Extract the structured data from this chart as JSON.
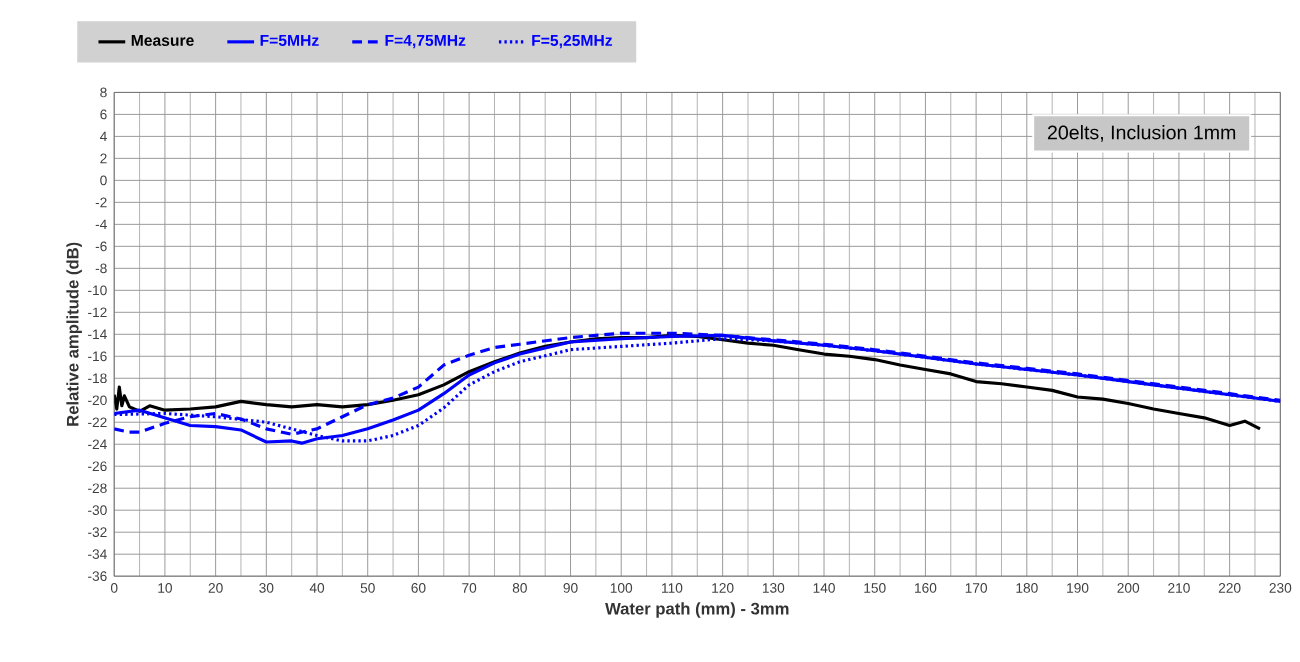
{
  "chart_data": {
    "type": "line",
    "xlabel": "Water path (mm) - 3mm",
    "ylabel": "Relative amplitude (dB)",
    "annotations": [
      "20elts, Inclusion 1mm"
    ],
    "xlim": [
      0,
      230
    ],
    "xticks": [
      0,
      10,
      20,
      30,
      40,
      50,
      60,
      70,
      80,
      90,
      100,
      110,
      120,
      130,
      140,
      150,
      160,
      170,
      180,
      190,
      200,
      210,
      220,
      230
    ],
    "ylim": [
      -36,
      8
    ],
    "yticks": [
      -36,
      -34,
      -32,
      -30,
      -28,
      -26,
      -24,
      -22,
      -20,
      -18,
      -16,
      -14,
      -12,
      -10,
      -8,
      -6,
      -4,
      -2,
      0,
      2,
      4,
      6,
      8
    ],
    "grid": true,
    "legend": "top",
    "marker": "none",
    "series": [
      {
        "name": "Measure",
        "color": "#000000",
        "line_style": "solid",
        "x": [
          0,
          0.5,
          1,
          1.5,
          2,
          3,
          5,
          7,
          10,
          15,
          20,
          25,
          30,
          35,
          40,
          45,
          50,
          55,
          60,
          65,
          70,
          75,
          80,
          85,
          90,
          95,
          100,
          105,
          110,
          115,
          120,
          125,
          130,
          135,
          140,
          145,
          150,
          155,
          160,
          165,
          170,
          175,
          180,
          185,
          190,
          195,
          200,
          205,
          210,
          215,
          220,
          223,
          226
        ],
        "values": [
          -19.5,
          -20.8,
          -18.8,
          -20.5,
          -19.6,
          -20.6,
          -21.0,
          -20.5,
          -20.9,
          -20.8,
          -20.6,
          -20.1,
          -20.4,
          -20.6,
          -20.4,
          -20.6,
          -20.4,
          -20.0,
          -19.5,
          -18.6,
          -17.4,
          -16.5,
          -15.7,
          -15.1,
          -14.7,
          -14.4,
          -14.3,
          -14.3,
          -14.1,
          -14.2,
          -14.5,
          -14.8,
          -15.0,
          -15.4,
          -15.8,
          -16.0,
          -16.3,
          -16.8,
          -17.2,
          -17.6,
          -18.3,
          -18.5,
          -18.8,
          -19.1,
          -19.7,
          -19.9,
          -20.3,
          -20.8,
          -21.2,
          -21.6,
          -22.3,
          -21.9,
          -22.6
        ]
      },
      {
        "name": "F=5MHz",
        "color": "#0000ff",
        "line_style": "solid",
        "x": [
          0,
          5,
          10,
          15,
          20,
          25,
          30,
          35,
          37,
          40,
          45,
          50,
          55,
          60,
          65,
          70,
          75,
          80,
          90,
          100,
          110,
          120,
          130,
          140,
          150,
          160,
          170,
          180,
          190,
          200,
          210,
          220,
          230
        ],
        "values": [
          -21.2,
          -20.9,
          -21.6,
          -22.3,
          -22.4,
          -22.7,
          -23.8,
          -23.7,
          -23.9,
          -23.5,
          -23.2,
          -22.6,
          -21.8,
          -20.9,
          -19.4,
          -17.7,
          -16.6,
          -15.8,
          -14.7,
          -14.4,
          -14.2,
          -14.1,
          -14.6,
          -15.0,
          -15.5,
          -16.1,
          -16.7,
          -17.2,
          -17.7,
          -18.3,
          -18.9,
          -19.5,
          -20.1
        ]
      },
      {
        "name": "F=4,75MHz",
        "color": "#0000ff",
        "line_style": "dashed",
        "x": [
          0,
          3,
          5,
          10,
          15,
          20,
          25,
          30,
          35,
          40,
          45,
          50,
          55,
          60,
          65,
          70,
          75,
          80,
          90,
          100,
          110,
          120,
          130,
          140,
          150,
          160,
          170,
          180,
          190,
          200,
          210,
          220,
          230
        ],
        "values": [
          -22.6,
          -22.9,
          -22.9,
          -22.1,
          -21.5,
          -21.2,
          -21.7,
          -22.6,
          -23.1,
          -22.6,
          -21.5,
          -20.4,
          -19.8,
          -18.8,
          -16.8,
          -15.9,
          -15.2,
          -14.9,
          -14.3,
          -13.9,
          -13.9,
          -14.1,
          -14.5,
          -14.9,
          -15.4,
          -16.0,
          -16.6,
          -17.1,
          -17.6,
          -18.2,
          -18.8,
          -19.4,
          -20.0
        ]
      },
      {
        "name": "F=5,25MHz",
        "color": "#0000ff",
        "line_style": "dotted",
        "x": [
          0,
          10,
          20,
          30,
          35,
          40,
          45,
          50,
          55,
          60,
          65,
          70,
          75,
          80,
          90,
          100,
          110,
          120,
          130,
          140,
          150,
          160,
          170,
          180,
          190,
          200,
          210,
          220,
          230
        ],
        "values": [
          -21.3,
          -21.2,
          -21.5,
          -22.0,
          -22.6,
          -23.2,
          -23.7,
          -23.7,
          -23.2,
          -22.3,
          -20.7,
          -18.6,
          -17.4,
          -16.5,
          -15.4,
          -15.1,
          -14.8,
          -14.4,
          -14.6,
          -15.0,
          -15.5,
          -16.1,
          -16.7,
          -17.2,
          -17.7,
          -18.3,
          -18.9,
          -19.5,
          -20.1
        ]
      }
    ]
  }
}
